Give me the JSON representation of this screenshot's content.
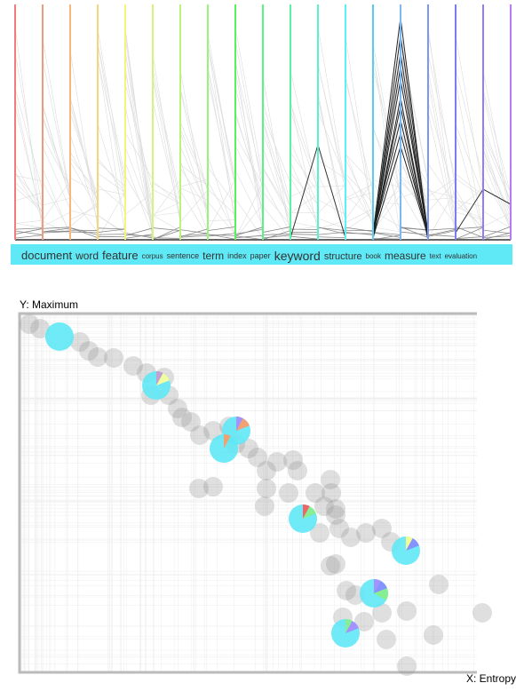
{
  "parallel_axes": {
    "keywords": [
      "document",
      "word",
      "feature",
      "corpus",
      "sentence",
      "term",
      "index",
      "paper",
      "keyword",
      "structure",
      "book",
      "measure",
      "text",
      "evaluation"
    ]
  },
  "scatter": {
    "y_label": "Y: Maximum",
    "x_label": "X: Entropy"
  }
}
